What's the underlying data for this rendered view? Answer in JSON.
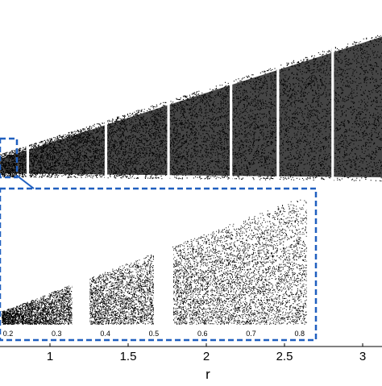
{
  "chart_data": [
    {
      "type": "scatter",
      "title": "",
      "xlabel": "r",
      "ylabel": "",
      "x_ticks": [
        "1",
        "1.5",
        "2",
        "2.5",
        "3"
      ],
      "x_tick_values": [
        1,
        1.5,
        2,
        2.5,
        3
      ],
      "xlim": [
        0.65,
        3.1
      ],
      "grid": false,
      "legend": "none",
      "description_of_marks": "dense black bifurcation points forming a widening wedge with narrow white periodic windows",
      "periodic_windows_r": [
        0.85,
        1.35,
        1.75,
        2.15,
        2.45,
        2.8
      ],
      "highlight_box_r": [
        0.65,
        0.78
      ]
    },
    {
      "type": "scatter",
      "title": "",
      "xlabel": "",
      "ylabel": "",
      "x_ticks": [
        "0.2",
        "0.3",
        "0.4",
        "0.5",
        "0.6",
        "0.7",
        "0.8"
      ],
      "x_tick_values": [
        0.2,
        0.3,
        0.4,
        0.5,
        0.6,
        0.7,
        0.8
      ],
      "xlim": [
        0.16,
        0.86
      ],
      "grid": false,
      "legend": "none",
      "periodic_windows": [
        0.35,
        0.52,
        0.83
      ],
      "frame_color": "#1f5fbf"
    }
  ],
  "colors": {
    "points": "#000000",
    "inset_frame": "#1f5fbf",
    "background": "#ffffff"
  }
}
